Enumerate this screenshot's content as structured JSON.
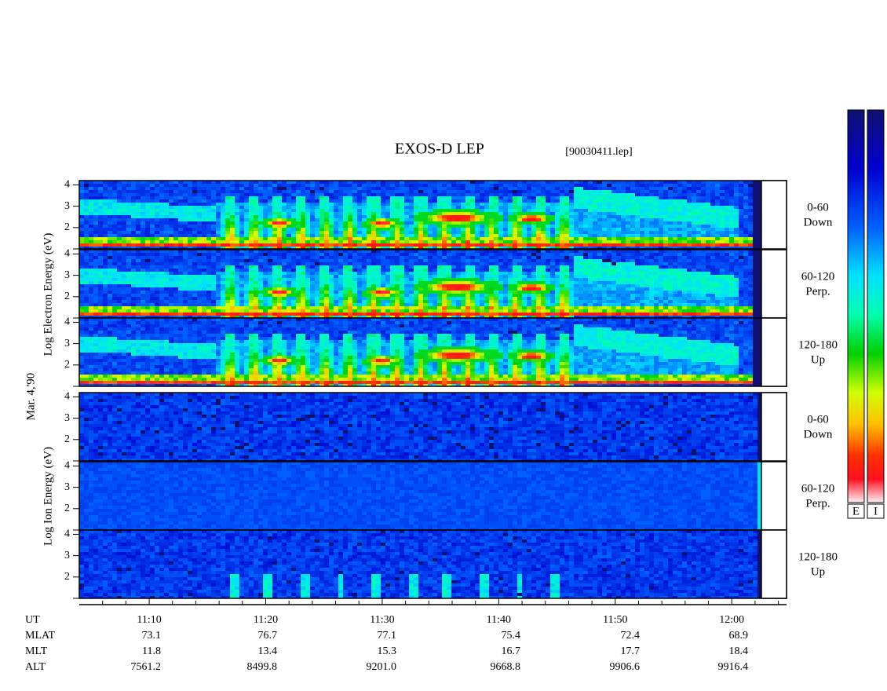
{
  "header": {
    "title": "EXOS-D LEP",
    "file": "[90030411.lep]"
  },
  "chart_data": {
    "type": "spectrogram",
    "xlim": [
      664,
      724.7
    ],
    "xticks": [
      {
        "value": 670,
        "label": "11:10"
      },
      {
        "value": 680,
        "label": "11:20"
      },
      {
        "value": 690,
        "label": "11:30"
      },
      {
        "value": 700,
        "label": "11:40"
      },
      {
        "value": 710,
        "label": "11:50"
      },
      {
        "value": 720,
        "label": "12:00"
      }
    ],
    "xminorticks": [
      666,
      668,
      672,
      674,
      676,
      678,
      682,
      684,
      686,
      688,
      692,
      694,
      696,
      698,
      702,
      704,
      706,
      708,
      712,
      714,
      716,
      718,
      722,
      724
    ],
    "date": "Mar. 4,'90",
    "groups": [
      {
        "label": "Log Electron Energy (eV)",
        "species": "electron",
        "panels": [
          {
            "pitch": "0-60",
            "direction": "Down",
            "ylim": [
              1,
              4.2
            ],
            "yticks": [
              2,
              3,
              4
            ]
          },
          {
            "pitch": "60-120",
            "direction": "Perp.",
            "ylim": [
              1,
              4.2
            ],
            "yticks": [
              2,
              3,
              4
            ]
          },
          {
            "pitch": "120-180",
            "direction": "Up",
            "ylim": [
              1,
              4.2
            ],
            "yticks": [
              2,
              3,
              4
            ]
          }
        ]
      },
      {
        "label": "Log Ion Energy (eV)",
        "species": "ion",
        "panels": [
          {
            "pitch": "0-60",
            "direction": "Down",
            "ylim": [
              1,
              4.2
            ],
            "yticks": [
              2,
              3,
              4
            ]
          },
          {
            "pitch": "60-120",
            "direction": "Perp.",
            "ylim": [
              1,
              4.2
            ],
            "yticks": [
              2,
              3,
              4
            ]
          },
          {
            "pitch": "120-180",
            "direction": "Up",
            "ylim": [
              1,
              4.2
            ],
            "yticks": [
              2,
              3,
              4
            ]
          }
        ]
      }
    ],
    "colorbar_labels": [
      "E",
      "I"
    ]
  },
  "table": {
    "ut_label": "UT",
    "rows": [
      {
        "label": "MLAT",
        "values": [
          "73.1",
          "76.7",
          "77.1",
          "75.4",
          "72.4",
          "68.9"
        ]
      },
      {
        "label": "MLT",
        "values": [
          "11.8",
          "13.4",
          "15.3",
          "16.7",
          "17.7",
          "18.4"
        ]
      },
      {
        "label": "ALT",
        "values": [
          "7561.2",
          "8499.8",
          "9201.0",
          "9668.8",
          "9906.6",
          "9916.4"
        ]
      }
    ]
  }
}
